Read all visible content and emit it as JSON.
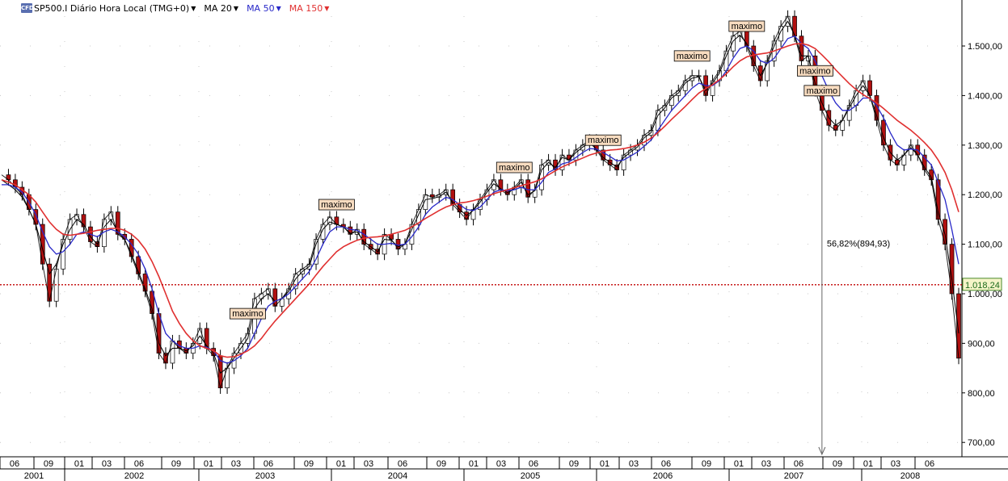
{
  "legend": {
    "symbol": "SP500.I Diário Hora Local (TMG+0)",
    "ma20": "MA 20",
    "ma50": "MA 50",
    "ma150": "MA 150",
    "logo": "CFD",
    "colors": {
      "symbol": "#000000",
      "ma20": "#000000",
      "ma50": "#2828c8",
      "ma150": "#e03030"
    }
  },
  "chart_data": {
    "type": "line",
    "title": "SP500.I Diário Hora Local (TMG+0)",
    "ylim": [
      680,
      1590
    ],
    "y_ticks": [
      "1.500,00",
      "1.400,00",
      "1.300,00",
      "1.200,00",
      "1.100,00",
      "1.000,00",
      "900,00",
      "800,00",
      "700,00"
    ],
    "y_tick_values": [
      1500,
      1400,
      1300,
      1200,
      1100,
      1000,
      900,
      800,
      700
    ],
    "x_month_labels": [
      "06",
      "09",
      "01",
      "03",
      "06",
      "09",
      "01",
      "03",
      "06",
      "09",
      "01",
      "03",
      "06",
      "09",
      "01",
      "03",
      "06",
      "09",
      "01",
      "03",
      "06",
      "09",
      "01",
      "03",
      "06",
      "09",
      "01",
      "03",
      "06",
      "09",
      "01",
      "03",
      "06"
    ],
    "x_year_labels": [
      "2001",
      "2002",
      "2003",
      "2004",
      "2005",
      "2006",
      "2007",
      "2008"
    ],
    "current_price": 1018.24,
    "current_price_label": "1.018,24",
    "annotations": [
      "maximo",
      "maximo",
      "maximo",
      "maximo",
      "maximo",
      "maximo",
      "maximo",
      "maximo"
    ],
    "drawdown_label": "56,82%(894,93)",
    "series": [
      {
        "name": "SP500.I",
        "color": "#000000",
        "values": [
          1240,
          1230,
          1215,
          1200,
          1170,
          1140,
          1060,
          985,
          1050,
          1110,
          1150,
          1160,
          1135,
          1105,
          1095,
          1150,
          1165,
          1120,
          1110,
          1075,
          1040,
          1005,
          960,
          880,
          860,
          905,
          890,
          880,
          900,
          930,
          890,
          875,
          810,
          850,
          880,
          900,
          920,
          990,
          1000,
          1010,
          975,
          990,
          1010,
          1040,
          1050,
          1060,
          1110,
          1140,
          1155,
          1140,
          1135,
          1120,
          1130,
          1100,
          1090,
          1080,
          1120,
          1110,
          1090,
          1100,
          1140,
          1170,
          1200,
          1195,
          1200,
          1210,
          1180,
          1165,
          1150,
          1170,
          1190,
          1210,
          1230,
          1210,
          1200,
          1215,
          1230,
          1195,
          1210,
          1260,
          1270,
          1250,
          1280,
          1270,
          1290,
          1300,
          1310,
          1290,
          1270,
          1260,
          1250,
          1280,
          1290,
          1300,
          1320,
          1330,
          1370,
          1380,
          1400,
          1410,
          1430,
          1440,
          1440,
          1400,
          1430,
          1450,
          1490,
          1520,
          1530,
          1500,
          1460,
          1430,
          1470,
          1510,
          1540,
          1560,
          1520,
          1470,
          1480,
          1410,
          1370,
          1340,
          1330,
          1350,
          1380,
          1410,
          1430,
          1400,
          1350,
          1300,
          1270,
          1260,
          1280,
          1300,
          1280,
          1250,
          1230,
          1150,
          1100,
          1000,
          870
        ]
      },
      {
        "name": "MA 20",
        "color": "#000000",
        "values": [
          1230,
          1220,
          1210,
          1195,
          1170,
          1140,
          1090,
          1040,
          1060,
          1100,
          1130,
          1150,
          1140,
          1115,
          1100,
          1135,
          1150,
          1125,
          1110,
          1080,
          1045,
          1010,
          970,
          900,
          875,
          890,
          890,
          885,
          895,
          915,
          895,
          880,
          840,
          850,
          870,
          890,
          910,
          970,
          990,
          1000,
          985,
          990,
          1005,
          1030,
          1045,
          1055,
          1100,
          1130,
          1145,
          1140,
          1135,
          1122,
          1125,
          1105,
          1095,
          1085,
          1110,
          1108,
          1095,
          1100,
          1130,
          1160,
          1190,
          1192,
          1196,
          1205,
          1185,
          1170,
          1158,
          1168,
          1185,
          1205,
          1222,
          1212,
          1204,
          1212,
          1225,
          1200,
          1208,
          1250,
          1265,
          1255,
          1275,
          1270,
          1285,
          1296,
          1305,
          1292,
          1275,
          1265,
          1256,
          1275,
          1286,
          1296,
          1315,
          1325,
          1360,
          1375,
          1395,
          1405,
          1425,
          1435,
          1438,
          1410,
          1425,
          1445,
          1480,
          1510,
          1522,
          1505,
          1470,
          1440,
          1465,
          1500,
          1530,
          1550,
          1522,
          1480,
          1480,
          1425,
          1385,
          1355,
          1340,
          1350,
          1375,
          1400,
          1420,
          1400,
          1360,
          1315,
          1285,
          1270,
          1280,
          1295,
          1280,
          1255,
          1235,
          1165,
          1120,
          1030,
          920
        ]
      },
      {
        "name": "MA 50",
        "color": "#2828c8",
        "values": [
          1220,
          1220,
          1215,
          1205,
          1185,
          1160,
          1125,
          1095,
          1080,
          1085,
          1100,
          1120,
          1125,
          1120,
          1115,
          1125,
          1130,
          1125,
          1115,
          1100,
          1080,
          1050,
          1010,
          960,
          920,
          905,
          895,
          890,
          890,
          895,
          892,
          885,
          865,
          860,
          865,
          875,
          890,
          920,
          950,
          975,
          985,
          990,
          1000,
          1015,
          1030,
          1045,
          1070,
          1100,
          1125,
          1135,
          1135,
          1130,
          1128,
          1120,
          1110,
          1100,
          1100,
          1102,
          1098,
          1100,
          1115,
          1135,
          1160,
          1175,
          1185,
          1195,
          1190,
          1180,
          1170,
          1168,
          1175,
          1190,
          1205,
          1210,
          1208,
          1210,
          1215,
          1210,
          1210,
          1225,
          1245,
          1252,
          1262,
          1266,
          1275,
          1285,
          1293,
          1292,
          1285,
          1277,
          1268,
          1270,
          1278,
          1286,
          1298,
          1310,
          1330,
          1350,
          1370,
          1385,
          1400,
          1415,
          1425,
          1420,
          1420,
          1430,
          1450,
          1475,
          1495,
          1500,
          1490,
          1470,
          1465,
          1475,
          1495,
          1515,
          1520,
          1505,
          1495,
          1470,
          1440,
          1410,
          1385,
          1370,
          1370,
          1380,
          1395,
          1395,
          1380,
          1355,
          1325,
          1300,
          1290,
          1292,
          1290,
          1275,
          1260,
          1225,
          1190,
          1130,
          1060
        ]
      },
      {
        "name": "MA 150",
        "color": "#e03030",
        "values": [
          1230,
          1225,
          1220,
          1210,
          1200,
          1185,
          1165,
          1145,
          1130,
          1120,
          1118,
          1120,
          1122,
          1125,
          1128,
          1130,
          1132,
          1132,
          1128,
          1120,
          1108,
          1090,
          1065,
          1035,
          1000,
          965,
          940,
          920,
          905,
          895,
          890,
          885,
          875,
          872,
          873,
          878,
          885,
          895,
          910,
          928,
          945,
          960,
          975,
          990,
          1005,
          1020,
          1038,
          1055,
          1070,
          1085,
          1095,
          1102,
          1108,
          1112,
          1114,
          1115,
          1117,
          1120,
          1124,
          1128,
          1135,
          1143,
          1152,
          1160,
          1168,
          1175,
          1180,
          1183,
          1185,
          1188,
          1192,
          1197,
          1202,
          1206,
          1210,
          1214,
          1218,
          1222,
          1226,
          1232,
          1240,
          1248,
          1256,
          1262,
          1268,
          1274,
          1280,
          1284,
          1288,
          1290,
          1291,
          1293,
          1296,
          1300,
          1306,
          1314,
          1325,
          1338,
          1352,
          1365,
          1378,
          1392,
          1405,
          1414,
          1422,
          1432,
          1444,
          1458,
          1470,
          1478,
          1482,
          1484,
          1486,
          1490,
          1495,
          1500,
          1504,
          1505,
          1502,
          1495,
          1482,
          1468,
          1452,
          1438,
          1424,
          1412,
          1402,
          1394,
          1385,
          1374,
          1362,
          1350,
          1340,
          1330,
          1318,
          1305,
          1290,
          1270,
          1245,
          1210,
          1165
        ]
      }
    ]
  }
}
